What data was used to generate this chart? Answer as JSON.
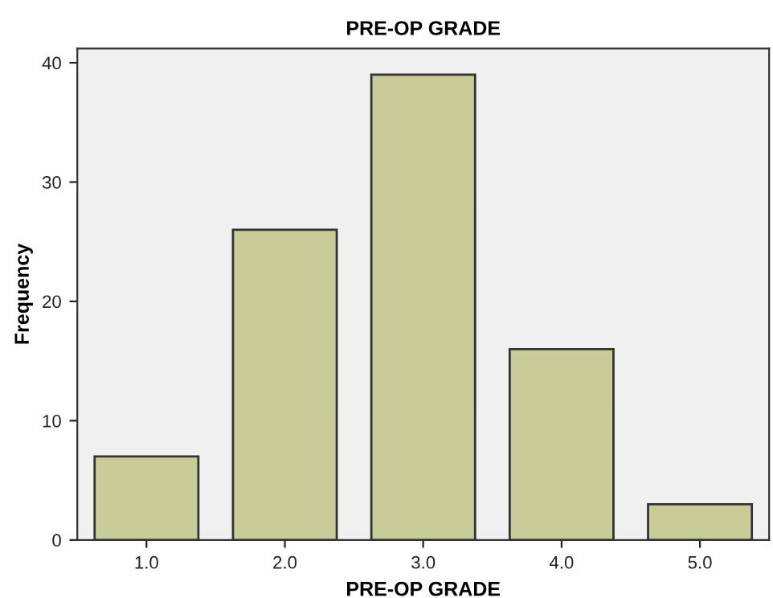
{
  "chart_data": {
    "type": "bar",
    "title": "PRE-OP GRADE",
    "xlabel": "PRE-OP GRADE",
    "ylabel": "Frequency",
    "categories": [
      "1.0",
      "2.0",
      "3.0",
      "4.0",
      "5.0"
    ],
    "values": [
      7,
      26,
      39,
      16,
      3
    ],
    "color": "#c8cc99",
    "ylim": [
      0,
      41.2
    ],
    "yticks": [
      0,
      10,
      20,
      30,
      40
    ],
    "grid": false
  }
}
